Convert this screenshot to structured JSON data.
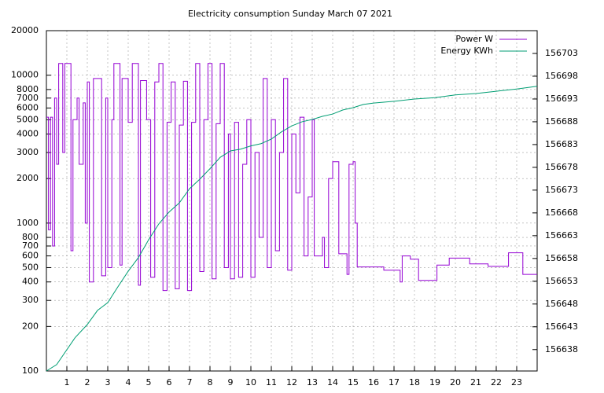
{
  "chart_data": {
    "type": "line",
    "title": "Electricity consumption Sunday March 07 2021",
    "xlim": [
      0,
      24
    ],
    "xticks": [
      1,
      2,
      3,
      4,
      5,
      6,
      7,
      8,
      9,
      10,
      11,
      12,
      13,
      14,
      15,
      16,
      17,
      18,
      19,
      20,
      21,
      22,
      23
    ],
    "ylim": [
      100,
      20000
    ],
    "yscale": "log",
    "yticks": [
      100,
      200,
      300,
      400,
      500,
      600,
      700,
      800,
      1000,
      2000,
      3000,
      4000,
      5000,
      6000,
      7000,
      8000,
      10000,
      20000
    ],
    "y2lim": [
      156633.3,
      156708
    ],
    "y2ticks": [
      156638,
      156643,
      156648,
      156653,
      156658,
      156663,
      156668,
      156673,
      156678,
      156683,
      156688,
      156693,
      156698,
      156703
    ],
    "grid": true,
    "legend": "top-right",
    "step": true,
    "series": [
      {
        "name": "Power W",
        "color": "#9400d3",
        "step": true,
        "x": [
          0,
          0.1,
          0.2,
          0.3,
          0.4,
          0.5,
          0.6,
          0.8,
          0.9,
          1.2,
          1.3,
          1.5,
          1.6,
          1.8,
          1.9,
          2.0,
          2.1,
          2.3,
          2.7,
          2.9,
          3.0,
          3.2,
          3.3,
          3.6,
          3.7,
          4.0,
          4.2,
          4.5,
          4.6,
          4.9,
          5.1,
          5.3,
          5.5,
          5.7,
          5.9,
          6.1,
          6.3,
          6.5,
          6.7,
          6.9,
          7.1,
          7.3,
          7.5,
          7.7,
          7.9,
          8.1,
          8.3,
          8.5,
          8.7,
          8.9,
          9.0,
          9.2,
          9.4,
          9.6,
          9.8,
          10.0,
          10.2,
          10.4,
          10.6,
          10.8,
          11.0,
          11.2,
          11.4,
          11.6,
          11.8,
          12.0,
          12.2,
          12.4,
          12.6,
          12.8,
          13.0,
          13.1,
          13.5,
          13.6,
          13.8,
          14.0,
          14.3,
          14.7,
          14.8,
          15.0,
          15.1,
          15.2,
          16.5,
          17.3,
          17.4,
          17.8,
          18.2,
          19.1,
          19.7,
          20.7,
          21.6,
          22.6,
          23.3,
          24
        ],
        "values": [
          5200,
          900,
          5200,
          700,
          7000,
          2500,
          12000,
          3000,
          12000,
          650,
          5000,
          7000,
          2500,
          6500,
          1000,
          9000,
          400,
          9500,
          440,
          7000,
          500,
          5000,
          12000,
          520,
          9500,
          4800,
          12000,
          380,
          9200,
          5000,
          430,
          9000,
          12000,
          350,
          4800,
          9000,
          360,
          4600,
          9100,
          350,
          4800,
          12000,
          470,
          5000,
          12000,
          420,
          4700,
          12000,
          500,
          4000,
          420,
          4800,
          430,
          2500,
          5000,
          430,
          3000,
          800,
          9500,
          500,
          5000,
          650,
          3000,
          9500,
          480,
          4000,
          1600,
          5200,
          600,
          1500,
          5000,
          600,
          800,
          500,
          2000,
          2600,
          620,
          450,
          2500,
          2600,
          1000,
          505,
          480,
          400,
          600,
          570,
          410,
          520,
          580,
          530,
          510,
          630,
          450,
          450
        ]
      },
      {
        "name": "Energy KWh",
        "color": "#009e73",
        "axis": "y2",
        "x": [
          0,
          0.5,
          1.4,
          2,
          2.5,
          3,
          3.5,
          4,
          4.5,
          5,
          5.5,
          6,
          6.5,
          7,
          7.5,
          8,
          8.5,
          9,
          9.5,
          10,
          10.5,
          11,
          11.5,
          12,
          12.5,
          13,
          13.5,
          14,
          14.5,
          15,
          15.5,
          16,
          17,
          18,
          19,
          20,
          21,
          22,
          23,
          24
        ],
        "values": [
          156633.3,
          156634.7,
          156640.6,
          156643.5,
          156646.6,
          156648.3,
          156651.8,
          156655.2,
          156658.2,
          156662.1,
          156665.6,
          156668.2,
          156670.2,
          156673.3,
          156675.4,
          156677.7,
          156680.2,
          156681.6,
          156682.0,
          156682.7,
          156683.2,
          156684.2,
          156685.8,
          156687.1,
          156688.0,
          156688.5,
          156689.2,
          156689.7,
          156690.6,
          156691.1,
          156691.8,
          156692.1,
          156692.5,
          156693.0,
          156693.3,
          156693.9,
          156694.2,
          156694.7,
          156695.2,
          156695.8
        ]
      }
    ]
  }
}
